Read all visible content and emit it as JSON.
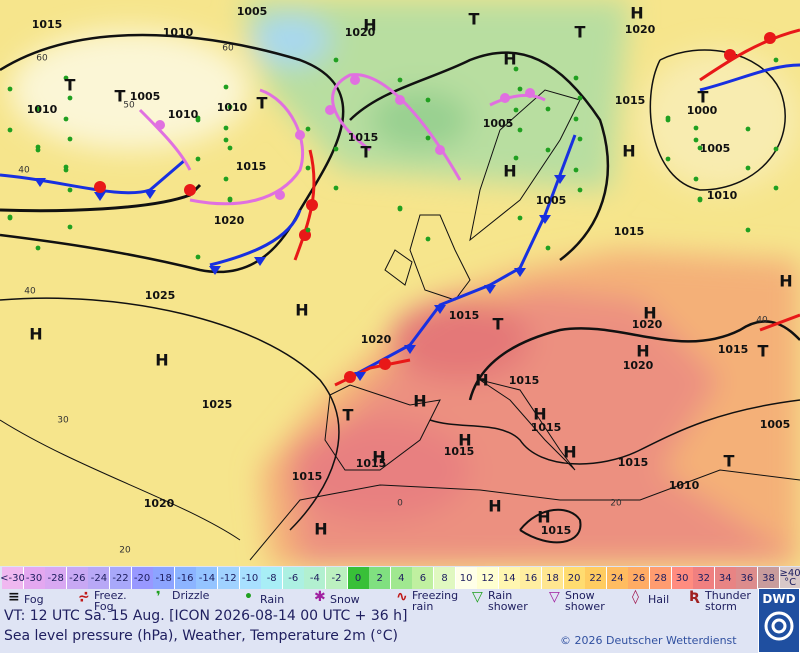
{
  "map": {
    "pressure_labels": [
      1015,
      1005,
      1010,
      1020,
      1020,
      1010,
      1005,
      1010,
      1010,
      1015,
      1005,
      1015,
      1000,
      1005,
      1010,
      1015,
      1020,
      1005,
      1015,
      1025,
      1015,
      1020,
      1020,
      1020,
      1015,
      1015,
      1015,
      1015,
      1015,
      1015,
      1005,
      1025,
      1015,
      1010,
      1020,
      1015
    ],
    "system_labels": [
      "T",
      "T",
      "T",
      "T",
      "H",
      "T",
      "H",
      "T",
      "H",
      "H",
      "T",
      "H",
      "H",
      "H",
      "T",
      "H",
      "H",
      "T",
      "H",
      "H",
      "T",
      "H",
      "H",
      "H",
      "H",
      "H",
      "T",
      "H",
      "H",
      "H",
      "H"
    ],
    "grid_labels": [
      "60",
      "40",
      "40",
      "30",
      "20",
      "0",
      "20",
      "50",
      "60",
      "40"
    ]
  },
  "color_scale": {
    "low_label": "<-30",
    "low_color": "#f0b8f0",
    "values": [
      -30,
      -28,
      -26,
      -24,
      -22,
      -20,
      -18,
      -16,
      -14,
      -12,
      -10,
      -8,
      -6,
      -4,
      -2,
      0,
      2,
      4,
      6,
      8,
      10,
      12,
      14,
      16,
      18,
      20,
      22,
      24,
      26,
      28,
      30,
      32,
      34,
      36,
      38
    ],
    "colors": [
      "#e4a8f0",
      "#d8a8f2",
      "#c8a8f4",
      "#b8a8f6",
      "#a8a8fa",
      "#9898ff",
      "#8ca4ff",
      "#8cb4ff",
      "#94c4ff",
      "#a0d2ff",
      "#a8e0ff",
      "#a8eef6",
      "#acf0e2",
      "#b2f0d0",
      "#bcf0c0",
      "#38c038",
      "#80e080",
      "#a0e890",
      "#c0f0a0",
      "#e0f8c0",
      "#ffffe8",
      "#ffffd0",
      "#fff6b0",
      "#ffeea0",
      "#ffe690",
      "#ffdc70",
      "#ffcc60",
      "#ffbc60",
      "#ffac64",
      "#ff9c70",
      "#ff8c80",
      "#f08080",
      "#e88484",
      "#dc8c8c",
      "#c89c9c"
    ],
    "high_label": "≥40 °C",
    "high_color": "#d8c8c8"
  },
  "legend": [
    "Fog",
    "Freez. Fog",
    "Drizzle",
    "Rain",
    "Snow",
    "Freezing rain",
    "Rain shower",
    "Snow shower",
    "Hail",
    "Thunder storm"
  ],
  "footer": {
    "valid_time": "VT: 12 UTC Sa.  15 Aug. [ICON 2026-08-14  00 UTC + 36 h]",
    "caption": "Sea level pressure (hPa), Weather, Temperature 2m (°C)",
    "copyright": "© 2026 Deutscher Wetterdienst",
    "logo": "DWD"
  }
}
